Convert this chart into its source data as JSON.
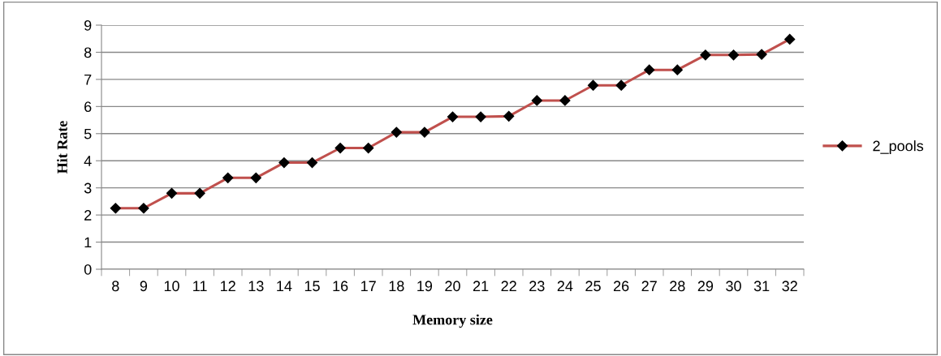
{
  "chart_data": {
    "type": "line",
    "xlabel": "Memory size",
    "ylabel": "Hit Rate",
    "categories": [
      "8",
      "9",
      "10",
      "11",
      "12",
      "13",
      "14",
      "15",
      "16",
      "17",
      "18",
      "19",
      "20",
      "21",
      "22",
      "23",
      "24",
      "25",
      "26",
      "27",
      "28",
      "29",
      "30",
      "31",
      "32"
    ],
    "series": [
      {
        "name": "2_pools",
        "color": "#c0504d",
        "values": [
          2.25,
          2.25,
          2.8,
          2.8,
          3.37,
          3.37,
          3.93,
          3.93,
          4.47,
          4.47,
          5.05,
          5.05,
          5.62,
          5.62,
          5.64,
          6.22,
          6.22,
          6.78,
          6.78,
          7.35,
          7.35,
          7.9,
          7.9,
          7.92,
          8.48
        ]
      }
    ],
    "ylim": [
      0,
      9
    ],
    "yticks": [
      0,
      1,
      2,
      3,
      4,
      5,
      6,
      7,
      8,
      9
    ],
    "grid": "y",
    "legend": "right",
    "marker": "diamond",
    "line_style": "solid"
  }
}
